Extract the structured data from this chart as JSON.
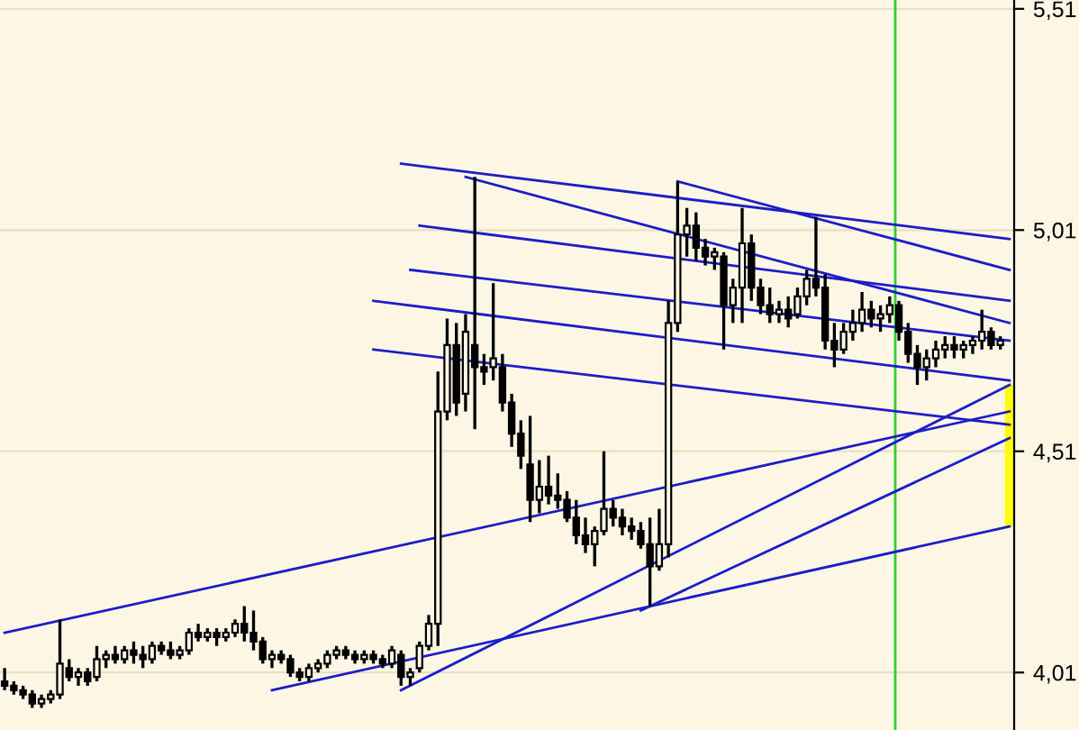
{
  "chart_data": {
    "type": "candlestick",
    "categories": [
      null,
      null,
      null,
      null,
      null,
      null,
      null,
      null,
      null,
      null,
      null,
      null,
      null,
      null,
      null,
      null,
      null,
      null,
      null,
      null,
      null,
      null,
      null,
      null,
      null,
      null,
      null,
      null,
      null,
      null,
      null,
      null,
      null,
      null,
      null,
      null,
      null,
      null,
      null,
      null,
      null,
      null,
      null,
      null,
      null,
      null,
      null,
      null,
      null,
      null,
      null,
      null,
      null,
      null,
      null,
      null,
      null,
      null,
      null,
      null,
      null,
      null,
      null,
      null,
      null,
      null,
      null,
      null,
      null,
      null,
      null,
      null,
      null,
      null,
      null,
      null,
      null,
      null,
      null,
      null,
      null,
      null,
      null,
      null,
      null,
      null,
      null,
      null,
      null,
      null,
      null,
      null,
      null,
      null,
      null,
      null,
      null,
      null,
      null,
      null,
      null,
      null,
      null,
      null,
      null,
      null,
      null,
      null,
      null,
      null
    ],
    "ohlc": [
      [
        3.99,
        4.02,
        3.97,
        3.98
      ],
      [
        3.98,
        3.99,
        3.96,
        3.97
      ],
      [
        3.97,
        3.98,
        3.95,
        3.96
      ],
      [
        3.96,
        3.97,
        3.93,
        3.94
      ],
      [
        3.94,
        3.96,
        3.93,
        3.95
      ],
      [
        3.95,
        3.97,
        3.94,
        3.96
      ],
      [
        3.96,
        4.13,
        3.95,
        4.03
      ],
      [
        4.02,
        4.04,
        3.99,
        4.0
      ],
      [
        4.0,
        4.02,
        3.98,
        4.01
      ],
      [
        4.01,
        4.02,
        3.98,
        3.99
      ],
      [
        4.0,
        4.07,
        3.99,
        4.04
      ],
      [
        4.04,
        4.06,
        4.02,
        4.05
      ],
      [
        4.05,
        4.07,
        4.03,
        4.04
      ],
      [
        4.04,
        4.07,
        4.03,
        4.06
      ],
      [
        4.06,
        4.08,
        4.03,
        4.05
      ],
      [
        4.05,
        4.07,
        4.02,
        4.04
      ],
      [
        4.04,
        4.08,
        4.03,
        4.07
      ],
      [
        4.07,
        4.08,
        4.05,
        4.06
      ],
      [
        4.06,
        4.08,
        4.04,
        4.05
      ],
      [
        4.05,
        4.07,
        4.04,
        4.06
      ],
      [
        4.06,
        4.11,
        4.05,
        4.1
      ],
      [
        4.1,
        4.12,
        4.08,
        4.09
      ],
      [
        4.09,
        4.11,
        4.08,
        4.1
      ],
      [
        4.1,
        4.11,
        4.07,
        4.09
      ],
      [
        4.09,
        4.11,
        4.08,
        4.1
      ],
      [
        4.1,
        4.13,
        4.09,
        4.12
      ],
      [
        4.12,
        4.16,
        4.08,
        4.1
      ],
      [
        4.1,
        4.15,
        4.06,
        4.08
      ],
      [
        4.08,
        4.09,
        4.03,
        4.04
      ],
      [
        4.04,
        4.06,
        4.02,
        4.05
      ],
      [
        4.05,
        4.06,
        4.03,
        4.04
      ],
      [
        4.04,
        4.05,
        4.0,
        4.01
      ],
      [
        4.01,
        4.02,
        3.99,
        4.0
      ],
      [
        4.0,
        4.03,
        3.99,
        4.02
      ],
      [
        4.02,
        4.04,
        4.01,
        4.03
      ],
      [
        4.03,
        4.06,
        4.02,
        4.05
      ],
      [
        4.05,
        4.07,
        4.04,
        4.06
      ],
      [
        4.06,
        4.07,
        4.04,
        4.05
      ],
      [
        4.05,
        4.06,
        4.03,
        4.04
      ],
      [
        4.04,
        4.06,
        4.03,
        4.05
      ],
      [
        4.05,
        4.06,
        4.03,
        4.04
      ],
      [
        4.04,
        4.05,
        4.02,
        4.03
      ],
      [
        4.03,
        4.07,
        4.02,
        4.06
      ],
      [
        4.05,
        4.06,
        3.98,
        4.0
      ],
      [
        4.0,
        4.02,
        3.98,
        4.01
      ],
      [
        4.02,
        4.08,
        4.01,
        4.07
      ],
      [
        4.07,
        4.14,
        4.06,
        4.12
      ],
      [
        4.12,
        4.69,
        4.07,
        4.6
      ],
      [
        4.6,
        4.81,
        4.58,
        4.75
      ],
      [
        4.75,
        4.8,
        4.59,
        4.62
      ],
      [
        4.64,
        4.82,
        4.6,
        4.78
      ],
      [
        4.75,
        5.13,
        4.56,
        4.7
      ],
      [
        4.7,
        4.73,
        4.66,
        4.69
      ],
      [
        4.7,
        4.89,
        4.67,
        4.72
      ],
      [
        4.7,
        4.73,
        4.6,
        4.62
      ],
      [
        4.62,
        4.64,
        4.52,
        4.55
      ],
      [
        4.55,
        4.58,
        4.47,
        4.5
      ],
      [
        4.48,
        4.59,
        4.35,
        4.4
      ],
      [
        4.4,
        4.49,
        4.37,
        4.43
      ],
      [
        4.43,
        4.5,
        4.39,
        4.41
      ],
      [
        4.41,
        4.46,
        4.38,
        4.4
      ],
      [
        4.4,
        4.42,
        4.35,
        4.36
      ],
      [
        4.36,
        4.4,
        4.3,
        4.32
      ],
      [
        4.32,
        4.36,
        4.28,
        4.3
      ],
      [
        4.3,
        4.34,
        4.25,
        4.33
      ],
      [
        4.33,
        4.51,
        4.32,
        4.38
      ],
      [
        4.38,
        4.4,
        4.34,
        4.36
      ],
      [
        4.36,
        4.38,
        4.32,
        4.34
      ],
      [
        4.34,
        4.36,
        4.31,
        4.33
      ],
      [
        4.33,
        4.35,
        4.29,
        4.3
      ],
      [
        4.3,
        4.36,
        4.16,
        4.25
      ],
      [
        4.25,
        4.38,
        4.24,
        4.3
      ],
      [
        4.3,
        4.85,
        4.27,
        4.8
      ],
      [
        4.8,
        5.12,
        4.78,
        5.0
      ],
      [
        5.0,
        5.06,
        4.95,
        5.02
      ],
      [
        5.02,
        5.05,
        4.94,
        4.97
      ],
      [
        4.97,
        4.99,
        4.93,
        4.95
      ],
      [
        4.95,
        4.97,
        4.92,
        4.96
      ],
      [
        4.95,
        4.96,
        4.74,
        4.84
      ],
      [
        4.84,
        4.9,
        4.8,
        4.88
      ],
      [
        4.88,
        5.06,
        4.8,
        4.98
      ],
      [
        4.98,
        5.0,
        4.85,
        4.88
      ],
      [
        4.88,
        4.9,
        4.82,
        4.84
      ],
      [
        4.84,
        4.88,
        4.8,
        4.82
      ],
      [
        4.82,
        4.85,
        4.8,
        4.83
      ],
      [
        4.83,
        4.86,
        4.79,
        4.81
      ],
      [
        4.82,
        4.88,
        4.81,
        4.86
      ],
      [
        4.86,
        4.92,
        4.84,
        4.9
      ],
      [
        4.9,
        5.04,
        4.86,
        4.88
      ],
      [
        4.88,
        4.91,
        4.74,
        4.76
      ],
      [
        4.76,
        4.8,
        4.7,
        4.74
      ],
      [
        4.74,
        4.8,
        4.73,
        4.78
      ],
      [
        4.78,
        4.83,
        4.76,
        4.8
      ],
      [
        4.8,
        4.87,
        4.78,
        4.83
      ],
      [
        4.83,
        4.85,
        4.79,
        4.81
      ],
      [
        4.81,
        4.84,
        4.78,
        4.82
      ],
      [
        4.82,
        4.86,
        4.8,
        4.84
      ],
      [
        4.84,
        4.85,
        4.76,
        4.78
      ],
      [
        4.78,
        4.8,
        4.71,
        4.73
      ],
      [
        4.73,
        4.75,
        4.66,
        4.7
      ],
      [
        4.7,
        4.74,
        4.67,
        4.72
      ],
      [
        4.72,
        4.76,
        4.7,
        4.74
      ],
      [
        4.74,
        4.77,
        4.72,
        4.75
      ],
      [
        4.75,
        4.77,
        4.72,
        4.74
      ],
      [
        4.74,
        4.76,
        4.72,
        4.75
      ],
      [
        4.75,
        4.77,
        4.73,
        4.76
      ],
      [
        4.76,
        4.83,
        4.74,
        4.78
      ],
      [
        4.78,
        4.79,
        4.74,
        4.75
      ],
      [
        4.75,
        4.77,
        4.74,
        4.76
      ],
      null
    ],
    "color": "#000000",
    "series": [
      {
        "type": "line",
        "color": "#1c1cc8",
        "values": [
          null,
          null,
          null,
          null,
          null,
          null,
          null,
          null,
          null,
          null,
          null,
          null,
          null,
          null,
          null,
          null,
          null,
          null,
          null,
          null,
          null,
          null,
          null,
          null,
          null,
          null,
          null,
          null,
          null,
          null,
          null,
          null,
          null,
          null,
          null,
          null,
          null,
          null,
          null,
          null,
          null,
          null,
          null,
          5.16,
          null,
          null,
          null,
          null,
          null,
          null,
          null,
          null,
          null,
          null,
          null,
          null,
          null,
          null,
          null,
          null,
          null,
          null,
          null,
          null,
          null,
          null,
          null,
          null,
          null,
          null,
          null,
          null,
          null,
          null,
          null,
          null,
          null,
          null,
          null,
          null,
          null,
          null,
          null,
          null,
          null,
          null,
          null,
          null,
          null,
          null,
          null,
          null,
          null,
          null,
          null,
          null,
          null,
          null,
          null,
          null,
          null,
          null,
          null,
          null,
          null,
          null,
          null,
          null,
          null,
          4.99
        ]
      },
      {
        "type": "line",
        "color": "#1c1cc8",
        "values": [
          null,
          null,
          null,
          null,
          null,
          null,
          null,
          null,
          null,
          null,
          null,
          null,
          null,
          null,
          null,
          null,
          null,
          null,
          null,
          null,
          null,
          null,
          null,
          null,
          null,
          null,
          null,
          null,
          null,
          null,
          null,
          null,
          null,
          null,
          null,
          null,
          null,
          null,
          null,
          null,
          null,
          null,
          null,
          null,
          null,
          null,
          null,
          null,
          null,
          null,
          null,
          null,
          null,
          null,
          null,
          null,
          null,
          null,
          null,
          null,
          null,
          null,
          null,
          null,
          null,
          null,
          null,
          null,
          null,
          null,
          null,
          null,
          null,
          5.12,
          null,
          null,
          null,
          null,
          null,
          null,
          null,
          null,
          null,
          null,
          null,
          null,
          null,
          null,
          null,
          null,
          null,
          null,
          null,
          null,
          null,
          null,
          null,
          null,
          null,
          null,
          null,
          null,
          null,
          null,
          null,
          null,
          null,
          null,
          null,
          4.92
        ]
      },
      {
        "type": "line",
        "color": "#1c1cc8",
        "values": [
          null,
          null,
          null,
          null,
          null,
          null,
          null,
          null,
          null,
          null,
          null,
          null,
          null,
          null,
          null,
          null,
          null,
          null,
          null,
          null,
          null,
          null,
          null,
          null,
          null,
          null,
          null,
          null,
          null,
          null,
          null,
          null,
          null,
          null,
          null,
          null,
          null,
          null,
          null,
          null,
          null,
          null,
          null,
          null,
          null,
          null,
          null,
          null,
          null,
          null,
          5.13,
          null,
          null,
          null,
          null,
          null,
          null,
          null,
          null,
          null,
          null,
          null,
          null,
          null,
          null,
          null,
          null,
          null,
          null,
          null,
          null,
          null,
          null,
          null,
          null,
          null,
          null,
          null,
          null,
          null,
          null,
          null,
          null,
          null,
          null,
          null,
          null,
          null,
          null,
          null,
          null,
          null,
          null,
          null,
          null,
          null,
          null,
          null,
          null,
          null,
          null,
          null,
          null,
          null,
          null,
          null,
          null,
          null,
          null,
          4.8
        ]
      },
      {
        "type": "line",
        "color": "#1c1cc8",
        "values": [
          null,
          null,
          null,
          null,
          null,
          null,
          null,
          null,
          null,
          null,
          null,
          null,
          null,
          null,
          null,
          null,
          null,
          null,
          null,
          null,
          null,
          null,
          null,
          null,
          null,
          null,
          null,
          null,
          null,
          null,
          null,
          null,
          null,
          null,
          null,
          null,
          null,
          null,
          null,
          null,
          null,
          null,
          null,
          null,
          null,
          5.02,
          null,
          null,
          null,
          null,
          null,
          null,
          null,
          null,
          null,
          null,
          null,
          null,
          null,
          null,
          null,
          null,
          null,
          null,
          null,
          null,
          null,
          null,
          null,
          null,
          null,
          null,
          null,
          null,
          null,
          null,
          null,
          null,
          null,
          null,
          null,
          null,
          null,
          null,
          null,
          null,
          null,
          null,
          null,
          null,
          null,
          null,
          null,
          null,
          null,
          null,
          null,
          null,
          null,
          null,
          null,
          null,
          null,
          null,
          null,
          null,
          null,
          null,
          null,
          4.85
        ]
      },
      {
        "type": "line",
        "color": "#1c1cc8",
        "values": [
          null,
          null,
          null,
          null,
          null,
          null,
          null,
          null,
          null,
          null,
          null,
          null,
          null,
          null,
          null,
          null,
          null,
          null,
          null,
          null,
          null,
          null,
          null,
          null,
          null,
          null,
          null,
          null,
          null,
          null,
          null,
          null,
          null,
          null,
          null,
          null,
          null,
          null,
          null,
          null,
          null,
          null,
          null,
          null,
          4.92,
          null,
          null,
          null,
          null,
          null,
          null,
          null,
          null,
          null,
          null,
          null,
          null,
          null,
          null,
          null,
          null,
          null,
          null,
          null,
          null,
          null,
          null,
          null,
          null,
          null,
          null,
          null,
          null,
          null,
          null,
          null,
          null,
          null,
          null,
          null,
          null,
          null,
          null,
          null,
          null,
          null,
          null,
          null,
          null,
          null,
          null,
          null,
          null,
          null,
          null,
          null,
          null,
          null,
          null,
          null,
          null,
          null,
          null,
          null,
          null,
          null,
          null,
          null,
          null,
          4.76
        ]
      },
      {
        "type": "line",
        "color": "#1c1cc8",
        "values": [
          null,
          null,
          null,
          null,
          null,
          null,
          null,
          null,
          null,
          null,
          null,
          null,
          null,
          null,
          null,
          null,
          null,
          null,
          null,
          null,
          null,
          null,
          null,
          null,
          null,
          null,
          null,
          null,
          null,
          null,
          null,
          null,
          null,
          null,
          null,
          null,
          null,
          null,
          null,
          null,
          4.85,
          null,
          null,
          null,
          null,
          null,
          null,
          null,
          null,
          null,
          null,
          null,
          null,
          null,
          null,
          null,
          null,
          null,
          null,
          null,
          null,
          null,
          null,
          null,
          null,
          null,
          null,
          null,
          null,
          null,
          null,
          null,
          null,
          null,
          null,
          null,
          null,
          null,
          null,
          null,
          null,
          null,
          null,
          null,
          null,
          null,
          null,
          null,
          null,
          null,
          null,
          null,
          null,
          null,
          null,
          null,
          null,
          null,
          null,
          null,
          null,
          null,
          null,
          null,
          null,
          null,
          null,
          null,
          null,
          4.67
        ]
      },
      {
        "type": "line",
        "color": "#1c1cc8",
        "values": [
          null,
          null,
          null,
          null,
          null,
          null,
          null,
          null,
          null,
          null,
          null,
          null,
          null,
          null,
          null,
          null,
          null,
          null,
          null,
          null,
          null,
          null,
          null,
          null,
          null,
          null,
          null,
          null,
          null,
          null,
          null,
          null,
          null,
          null,
          null,
          null,
          null,
          null,
          null,
          null,
          4.74,
          null,
          null,
          null,
          null,
          null,
          null,
          null,
          null,
          null,
          null,
          null,
          null,
          null,
          null,
          null,
          null,
          null,
          null,
          null,
          null,
          null,
          null,
          null,
          null,
          null,
          null,
          null,
          null,
          null,
          null,
          null,
          null,
          null,
          null,
          null,
          null,
          null,
          null,
          null,
          null,
          null,
          null,
          null,
          null,
          null,
          null,
          null,
          null,
          null,
          null,
          null,
          null,
          null,
          null,
          null,
          null,
          null,
          null,
          null,
          null,
          null,
          null,
          null,
          null,
          null,
          null,
          null,
          null,
          4.57
        ]
      },
      {
        "type": "line",
        "color": "#1c1cc8",
        "values": [
          4.1,
          null,
          null,
          null,
          null,
          null,
          null,
          null,
          null,
          null,
          null,
          null,
          null,
          null,
          null,
          null,
          null,
          null,
          null,
          null,
          null,
          null,
          null,
          null,
          null,
          null,
          null,
          null,
          null,
          null,
          null,
          null,
          null,
          null,
          null,
          null,
          null,
          null,
          null,
          null,
          null,
          null,
          null,
          null,
          null,
          null,
          null,
          null,
          null,
          null,
          null,
          null,
          null,
          null,
          null,
          null,
          null,
          null,
          null,
          null,
          null,
          null,
          null,
          null,
          null,
          null,
          null,
          null,
          null,
          null,
          null,
          null,
          null,
          null,
          null,
          null,
          null,
          null,
          null,
          null,
          null,
          null,
          null,
          null,
          null,
          null,
          null,
          null,
          null,
          null,
          null,
          null,
          null,
          null,
          null,
          null,
          null,
          null,
          null,
          null,
          null,
          null,
          null,
          null,
          null,
          null,
          null,
          null,
          null,
          4.6
        ]
      },
      {
        "type": "line",
        "color": "#1c1cc8",
        "values": [
          null,
          null,
          null,
          null,
          null,
          null,
          null,
          null,
          null,
          null,
          null,
          null,
          null,
          null,
          null,
          null,
          null,
          null,
          null,
          null,
          null,
          null,
          null,
          null,
          null,
          null,
          null,
          null,
          null,
          null,
          null,
          null,
          null,
          null,
          null,
          null,
          null,
          null,
          null,
          null,
          null,
          null,
          null,
          3.97,
          null,
          null,
          null,
          null,
          null,
          null,
          null,
          null,
          null,
          null,
          null,
          null,
          null,
          null,
          null,
          null,
          null,
          null,
          null,
          null,
          null,
          null,
          null,
          null,
          null,
          null,
          null,
          null,
          null,
          null,
          null,
          null,
          null,
          null,
          null,
          null,
          null,
          null,
          null,
          null,
          null,
          null,
          null,
          null,
          null,
          null,
          null,
          null,
          null,
          null,
          null,
          null,
          null,
          null,
          null,
          null,
          null,
          null,
          null,
          null,
          null,
          null,
          null,
          null,
          null,
          4.66
        ]
      },
      {
        "type": "line",
        "color": "#1c1cc8",
        "values": [
          null,
          null,
          null,
          null,
          null,
          null,
          null,
          null,
          null,
          null,
          null,
          null,
          null,
          null,
          null,
          null,
          null,
          null,
          null,
          null,
          null,
          null,
          null,
          null,
          null,
          null,
          null,
          null,
          null,
          null,
          null,
          null,
          null,
          null,
          null,
          null,
          null,
          null,
          null,
          null,
          null,
          null,
          null,
          null,
          null,
          null,
          null,
          null,
          null,
          null,
          null,
          null,
          null,
          null,
          null,
          null,
          null,
          null,
          null,
          null,
          null,
          null,
          null,
          null,
          null,
          null,
          null,
          null,
          null,
          4.15,
          null,
          null,
          null,
          null,
          null,
          null,
          null,
          null,
          null,
          null,
          null,
          null,
          null,
          null,
          null,
          null,
          null,
          null,
          null,
          null,
          null,
          null,
          null,
          null,
          null,
          null,
          null,
          null,
          null,
          null,
          null,
          null,
          null,
          null,
          null,
          null,
          null,
          null,
          null,
          4.54
        ]
      },
      {
        "type": "line",
        "color": "#1c1cc8",
        "values": [
          null,
          null,
          null,
          null,
          null,
          null,
          null,
          null,
          null,
          null,
          null,
          null,
          null,
          null,
          null,
          null,
          null,
          null,
          null,
          null,
          null,
          null,
          null,
          null,
          null,
          null,
          null,
          null,
          null,
          3.97,
          null,
          null,
          null,
          null,
          null,
          null,
          null,
          null,
          null,
          null,
          null,
          null,
          null,
          null,
          null,
          null,
          null,
          null,
          null,
          null,
          null,
          null,
          null,
          null,
          null,
          null,
          null,
          null,
          null,
          null,
          null,
          null,
          null,
          null,
          null,
          null,
          null,
          null,
          null,
          null,
          null,
          null,
          null,
          null,
          null,
          null,
          null,
          null,
          null,
          null,
          null,
          null,
          null,
          null,
          null,
          null,
          null,
          null,
          null,
          null,
          null,
          null,
          null,
          null,
          null,
          null,
          null,
          null,
          null,
          null,
          null,
          null,
          null,
          null,
          null,
          null,
          null,
          null,
          null,
          4.34
        ]
      },
      {
        "type": "bar",
        "color": "#ffff00",
        "values": [
          null,
          null,
          null,
          null,
          null,
          null,
          null,
          null,
          null,
          null,
          null,
          null,
          null,
          null,
          null,
          null,
          null,
          null,
          null,
          null,
          null,
          null,
          null,
          null,
          null,
          null,
          null,
          null,
          null,
          null,
          null,
          null,
          null,
          null,
          null,
          null,
          null,
          null,
          null,
          null,
          null,
          null,
          null,
          null,
          null,
          null,
          null,
          null,
          null,
          null,
          null,
          null,
          null,
          null,
          null,
          null,
          null,
          null,
          null,
          null,
          null,
          null,
          null,
          null,
          null,
          null,
          null,
          null,
          null,
          null,
          null,
          null,
          null,
          null,
          null,
          null,
          null,
          null,
          null,
          null,
          null,
          null,
          null,
          null,
          null,
          null,
          null,
          null,
          null,
          null,
          null,
          null,
          null,
          null,
          null,
          null,
          null,
          null,
          null,
          null,
          null,
          null,
          null,
          null,
          null,
          null,
          null,
          null,
          null,
          0.32
        ],
        "base": [
          null,
          null,
          null,
          null,
          null,
          null,
          null,
          null,
          null,
          null,
          null,
          null,
          null,
          null,
          null,
          null,
          null,
          null,
          null,
          null,
          null,
          null,
          null,
          null,
          null,
          null,
          null,
          null,
          null,
          null,
          null,
          null,
          null,
          null,
          null,
          null,
          null,
          null,
          null,
          null,
          null,
          null,
          null,
          null,
          null,
          null,
          null,
          null,
          null,
          null,
          null,
          null,
          null,
          null,
          null,
          null,
          null,
          null,
          null,
          null,
          null,
          null,
          null,
          null,
          null,
          null,
          null,
          null,
          null,
          null,
          null,
          null,
          null,
          null,
          null,
          null,
          null,
          null,
          null,
          null,
          null,
          null,
          null,
          null,
          null,
          null,
          null,
          null,
          null,
          null,
          null,
          null,
          null,
          null,
          null,
          null,
          null,
          null,
          null,
          null,
          null,
          null,
          null,
          null,
          null,
          null,
          null,
          null,
          null,
          4.34
        ]
      }
    ],
    "ylim": [
      3.88,
      5.53
    ],
    "yticks": [
      {
        "value": 4.01,
        "label": "4,01"
      },
      {
        "value": 4.51,
        "label": "4,51"
      },
      {
        "value": 5.01,
        "label": "5,01"
      },
      {
        "value": 5.51,
        "label": "5,51"
      }
    ],
    "grid": "y",
    "tick_labels": "y"
  }
}
